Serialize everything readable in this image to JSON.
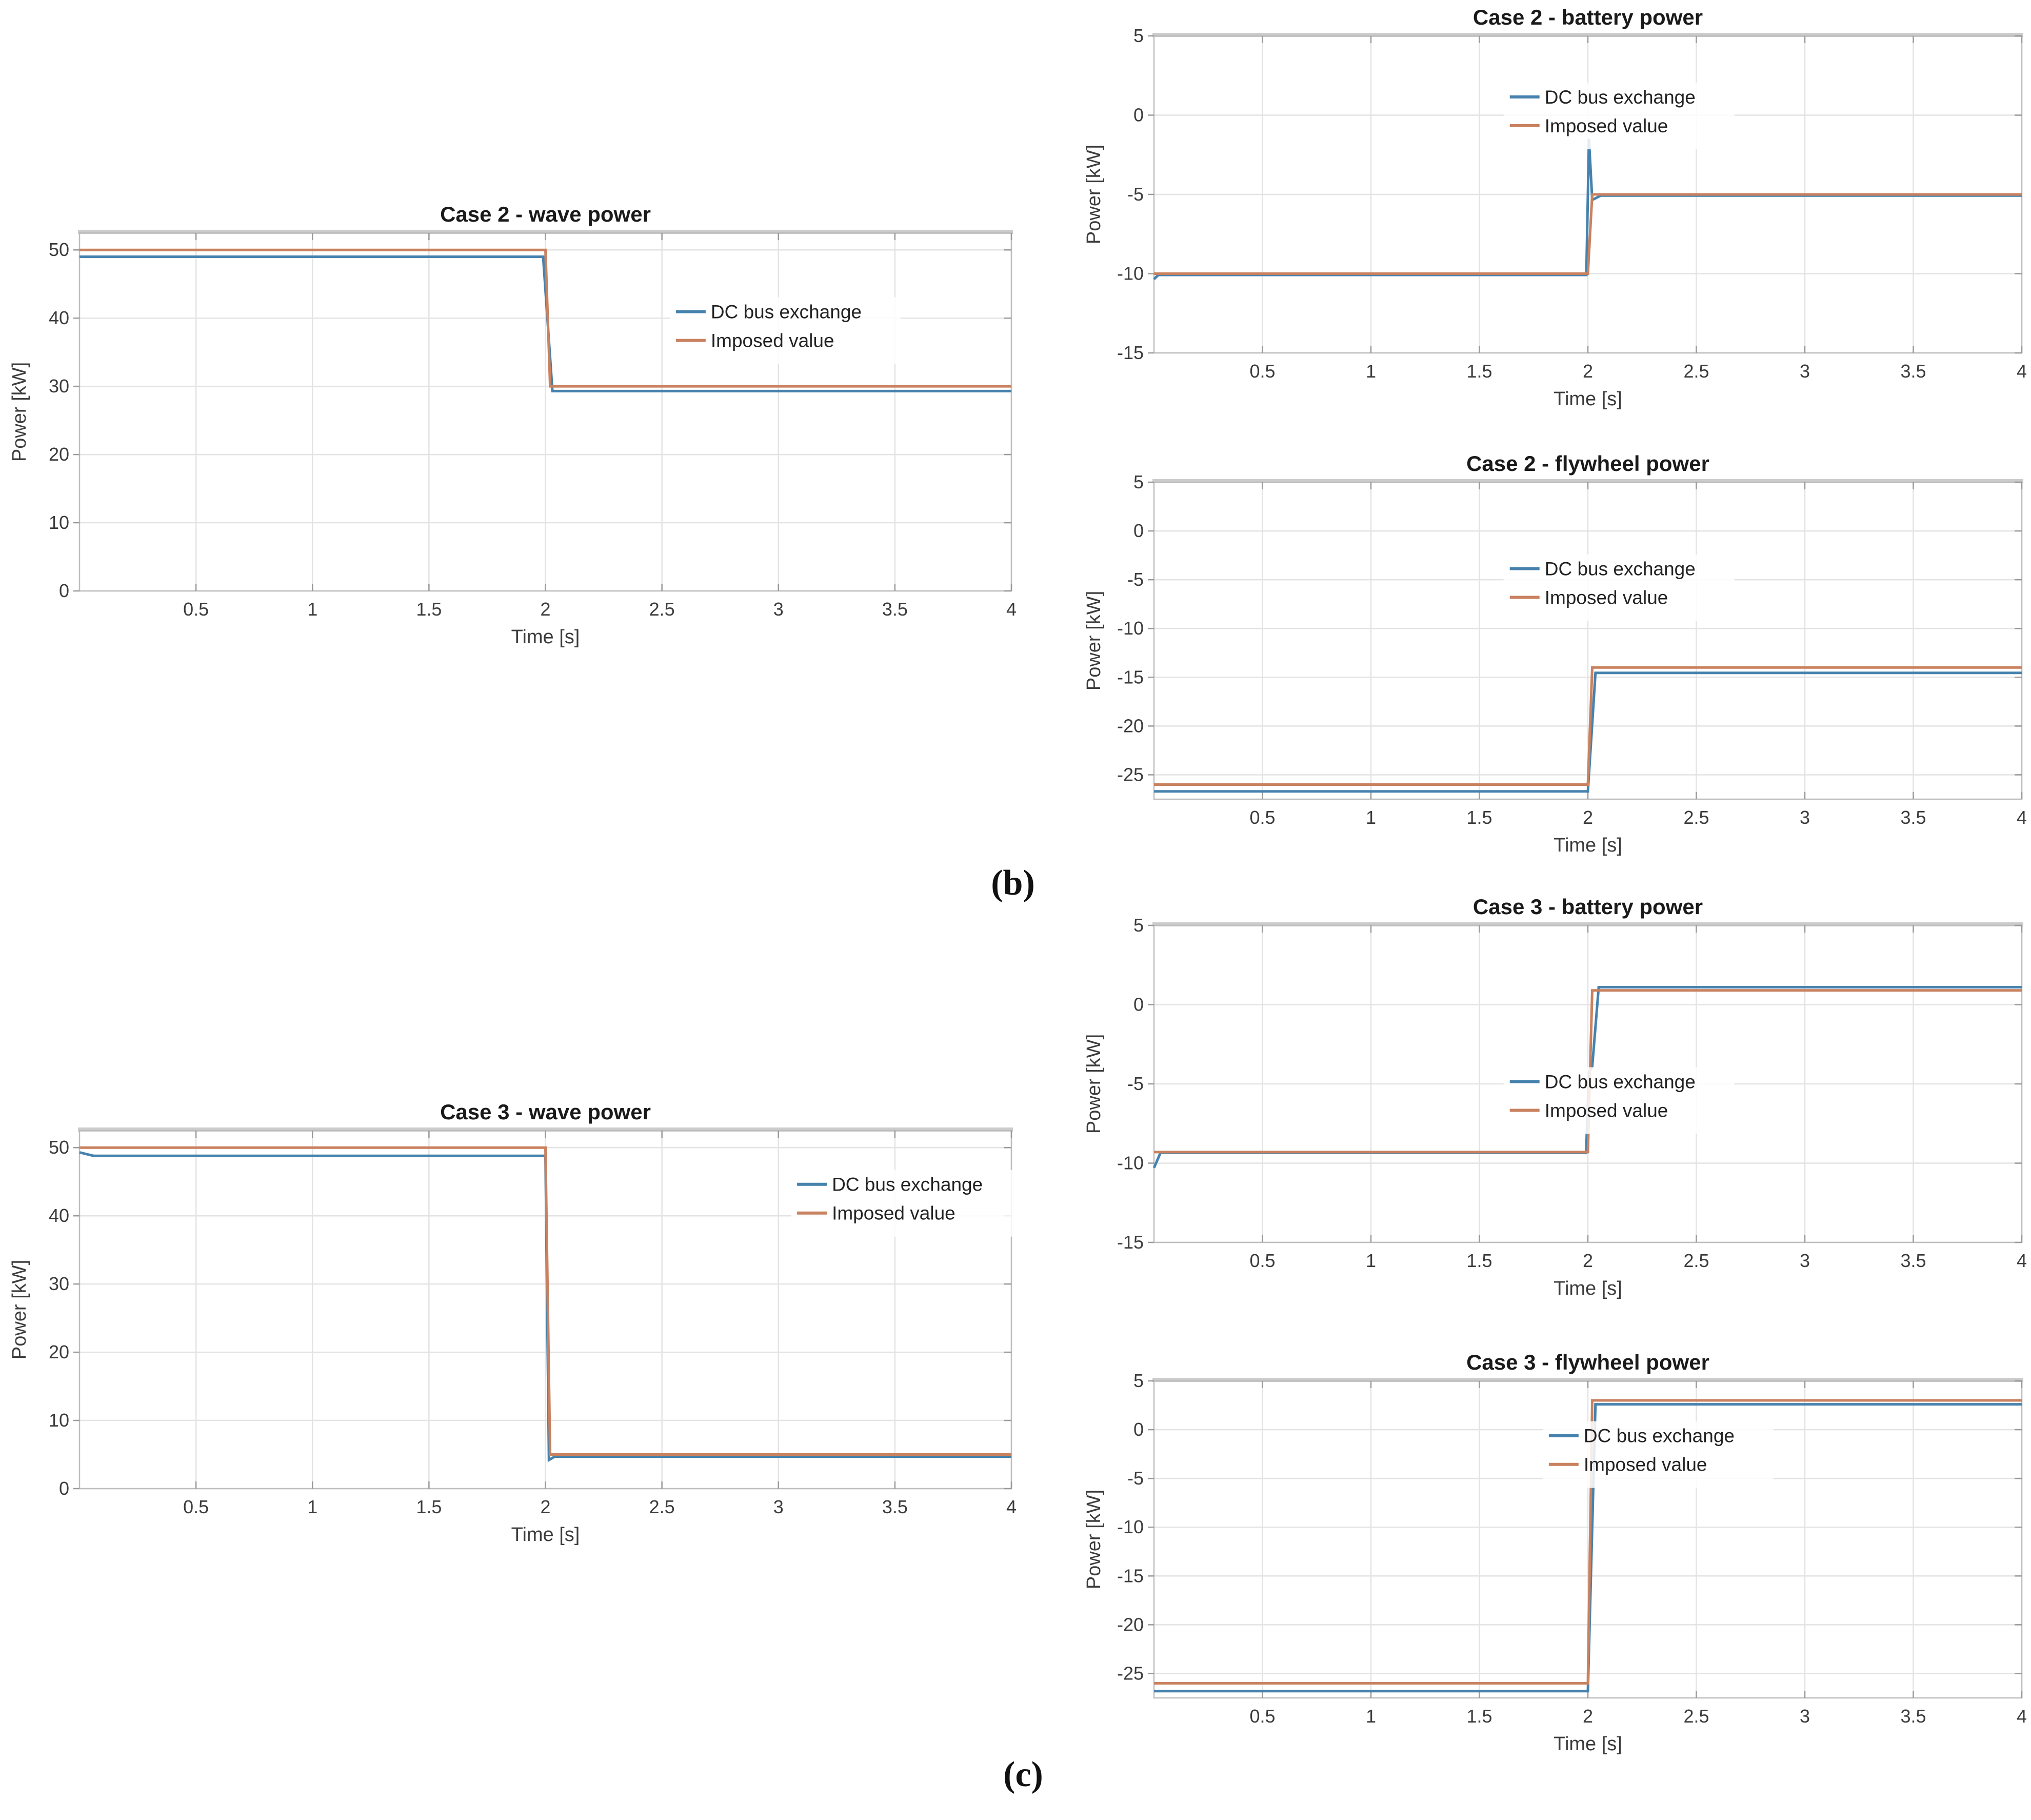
{
  "figure": {
    "panel_labels": {
      "b": "(b)",
      "c": "(c)"
    }
  },
  "colors": {
    "dc_bus": "#4682ad",
    "imposed": "#c9815f",
    "grid": "#e3e3e3",
    "frame": "#bdbdbd",
    "frame_top": "#cccccc",
    "text": "#3c3c3c",
    "title": "#1a1a1a"
  },
  "chart_data": [
    {
      "id": "case2-wave-power",
      "type": "line",
      "title": "Case 2 - wave power",
      "xlabel": "Time [s]",
      "ylabel": "Power [kW]",
      "xlim": [
        0,
        4
      ],
      "ylim": [
        0,
        52.5
      ],
      "xticks": [
        0.5,
        1,
        1.5,
        2,
        2.5,
        3,
        3.5,
        4
      ],
      "yticks": [
        0,
        10,
        20,
        30,
        40,
        50
      ],
      "grid": true,
      "legend_pos": {
        "x": 0.64,
        "y": 0.2
      },
      "series": [
        {
          "name": "DC bus exchange",
          "color": "dc_bus",
          "points": [
            [
              0,
              49
            ],
            [
              1.99,
              49
            ],
            [
              2.03,
              29.3
            ],
            [
              4,
              29.3
            ]
          ]
        },
        {
          "name": "Imposed value",
          "color": "imposed",
          "points": [
            [
              0,
              50
            ],
            [
              2,
              50
            ],
            [
              2.02,
              30
            ],
            [
              4,
              30
            ]
          ]
        }
      ]
    },
    {
      "id": "case2-battery-power",
      "type": "line",
      "title": "Case 2 - battery power",
      "xlabel": "Time [s]",
      "ylabel": "Power [kW]",
      "xlim": [
        0,
        4
      ],
      "ylim": [
        -15,
        5
      ],
      "xticks": [
        0.5,
        1,
        1.5,
        2,
        2.5,
        3,
        3.5,
        4
      ],
      "yticks": [
        -15,
        -10,
        -5,
        0,
        5
      ],
      "grid": true,
      "legend_pos": {
        "x": 0.41,
        "y": 0.17
      },
      "series": [
        {
          "name": "DC bus exchange",
          "color": "dc_bus",
          "points": [
            [
              0,
              -10.35
            ],
            [
              0.02,
              -10.08
            ],
            [
              1.993,
              -10.08
            ],
            [
              2.005,
              -1.5
            ],
            [
              2.02,
              -5.35
            ],
            [
              2.06,
              -5.07
            ],
            [
              4,
              -5.07
            ]
          ]
        },
        {
          "name": "Imposed value",
          "color": "imposed",
          "points": [
            [
              0,
              -10
            ],
            [
              2,
              -10
            ],
            [
              2.02,
              -5
            ],
            [
              4,
              -5
            ]
          ]
        }
      ]
    },
    {
      "id": "case2-flywheel-power",
      "type": "line",
      "title": "Case 2 - flywheel power",
      "xlabel": "Time [s]",
      "ylabel": "Power [kW]",
      "xlim": [
        0,
        4
      ],
      "ylim": [
        -27.5,
        5
      ],
      "xticks": [
        0.5,
        1,
        1.5,
        2,
        2.5,
        3,
        3.5,
        4
      ],
      "yticks": [
        -25,
        -20,
        -15,
        -10,
        -5,
        0,
        5
      ],
      "grid": true,
      "legend_pos": {
        "x": 0.41,
        "y": 0.25
      },
      "series": [
        {
          "name": "DC bus exchange",
          "color": "dc_bus",
          "points": [
            [
              0,
              -26.7
            ],
            [
              2,
              -26.7
            ],
            [
              2.035,
              -14.55
            ],
            [
              4,
              -14.55
            ]
          ]
        },
        {
          "name": "Imposed value",
          "color": "imposed",
          "points": [
            [
              0,
              -26
            ],
            [
              2,
              -26
            ],
            [
              2.02,
              -14
            ],
            [
              4,
              -14
            ]
          ]
        }
      ]
    },
    {
      "id": "case3-wave-power",
      "type": "line",
      "title": "Case 3 - wave power",
      "xlabel": "Time [s]",
      "ylabel": "Power [kW]",
      "xlim": [
        0,
        4
      ],
      "ylim": [
        0,
        52.5
      ],
      "xticks": [
        0.5,
        1,
        1.5,
        2,
        2.5,
        3,
        3.5,
        4
      ],
      "yticks": [
        0,
        10,
        20,
        30,
        40,
        50
      ],
      "grid": true,
      "legend_pos": {
        "x": 0.77,
        "y": 0.13
      },
      "series": [
        {
          "name": "DC bus exchange",
          "color": "dc_bus",
          "points": [
            [
              0,
              49.3
            ],
            [
              0.06,
              48.8
            ],
            [
              2,
              48.8
            ],
            [
              2.015,
              4.2
            ],
            [
              2.04,
              4.7
            ],
            [
              4,
              4.7
            ]
          ]
        },
        {
          "name": "Imposed value",
          "color": "imposed",
          "points": [
            [
              0,
              50
            ],
            [
              2,
              50
            ],
            [
              2.02,
              5
            ],
            [
              4,
              5
            ]
          ]
        }
      ]
    },
    {
      "id": "case3-battery-power",
      "type": "line",
      "title": "Case 3 - battery power",
      "xlabel": "Time [s]",
      "ylabel": "Power [kW]",
      "xlim": [
        0,
        4
      ],
      "ylim": [
        -15,
        5
      ],
      "xticks": [
        0.5,
        1,
        1.5,
        2,
        2.5,
        3,
        3.5,
        4
      ],
      "yticks": [
        -15,
        -10,
        -5,
        0,
        5
      ],
      "grid": true,
      "legend_pos": {
        "x": 0.41,
        "y": 0.47
      },
      "series": [
        {
          "name": "DC bus exchange",
          "color": "dc_bus",
          "points": [
            [
              0,
              -10.3
            ],
            [
              0.03,
              -9.35
            ],
            [
              1.992,
              -9.35
            ],
            [
              2.005,
              -4.3
            ],
            [
              2.02,
              -3.9
            ],
            [
              2.05,
              1.1
            ],
            [
              4,
              1.1
            ]
          ]
        },
        {
          "name": "Imposed value",
          "color": "imposed",
          "points": [
            [
              0,
              -9.3
            ],
            [
              2,
              -9.3
            ],
            [
              2.02,
              0.9
            ],
            [
              4,
              0.9
            ]
          ]
        }
      ]
    },
    {
      "id": "case3-flywheel-power",
      "type": "line",
      "title": "Case 3 - flywheel power",
      "xlabel": "Time [s]",
      "ylabel": "Power [kW]",
      "xlim": [
        0,
        4
      ],
      "ylim": [
        -27.5,
        5
      ],
      "xticks": [
        0.5,
        1,
        1.5,
        2,
        2.5,
        3,
        3.5,
        4
      ],
      "yticks": [
        -25,
        -20,
        -15,
        -10,
        -5,
        0,
        5
      ],
      "grid": true,
      "legend_pos": {
        "x": 0.455,
        "y": 0.15
      },
      "series": [
        {
          "name": "DC bus exchange",
          "color": "dc_bus",
          "points": [
            [
              0,
              -26.8
            ],
            [
              2,
              -26.8
            ],
            [
              2.035,
              2.6
            ],
            [
              4,
              2.6
            ]
          ]
        },
        {
          "name": "Imposed value",
          "color": "imposed",
          "points": [
            [
              0,
              -26
            ],
            [
              2,
              -26
            ],
            [
              2.02,
              3
            ],
            [
              4,
              3
            ]
          ]
        }
      ]
    }
  ]
}
